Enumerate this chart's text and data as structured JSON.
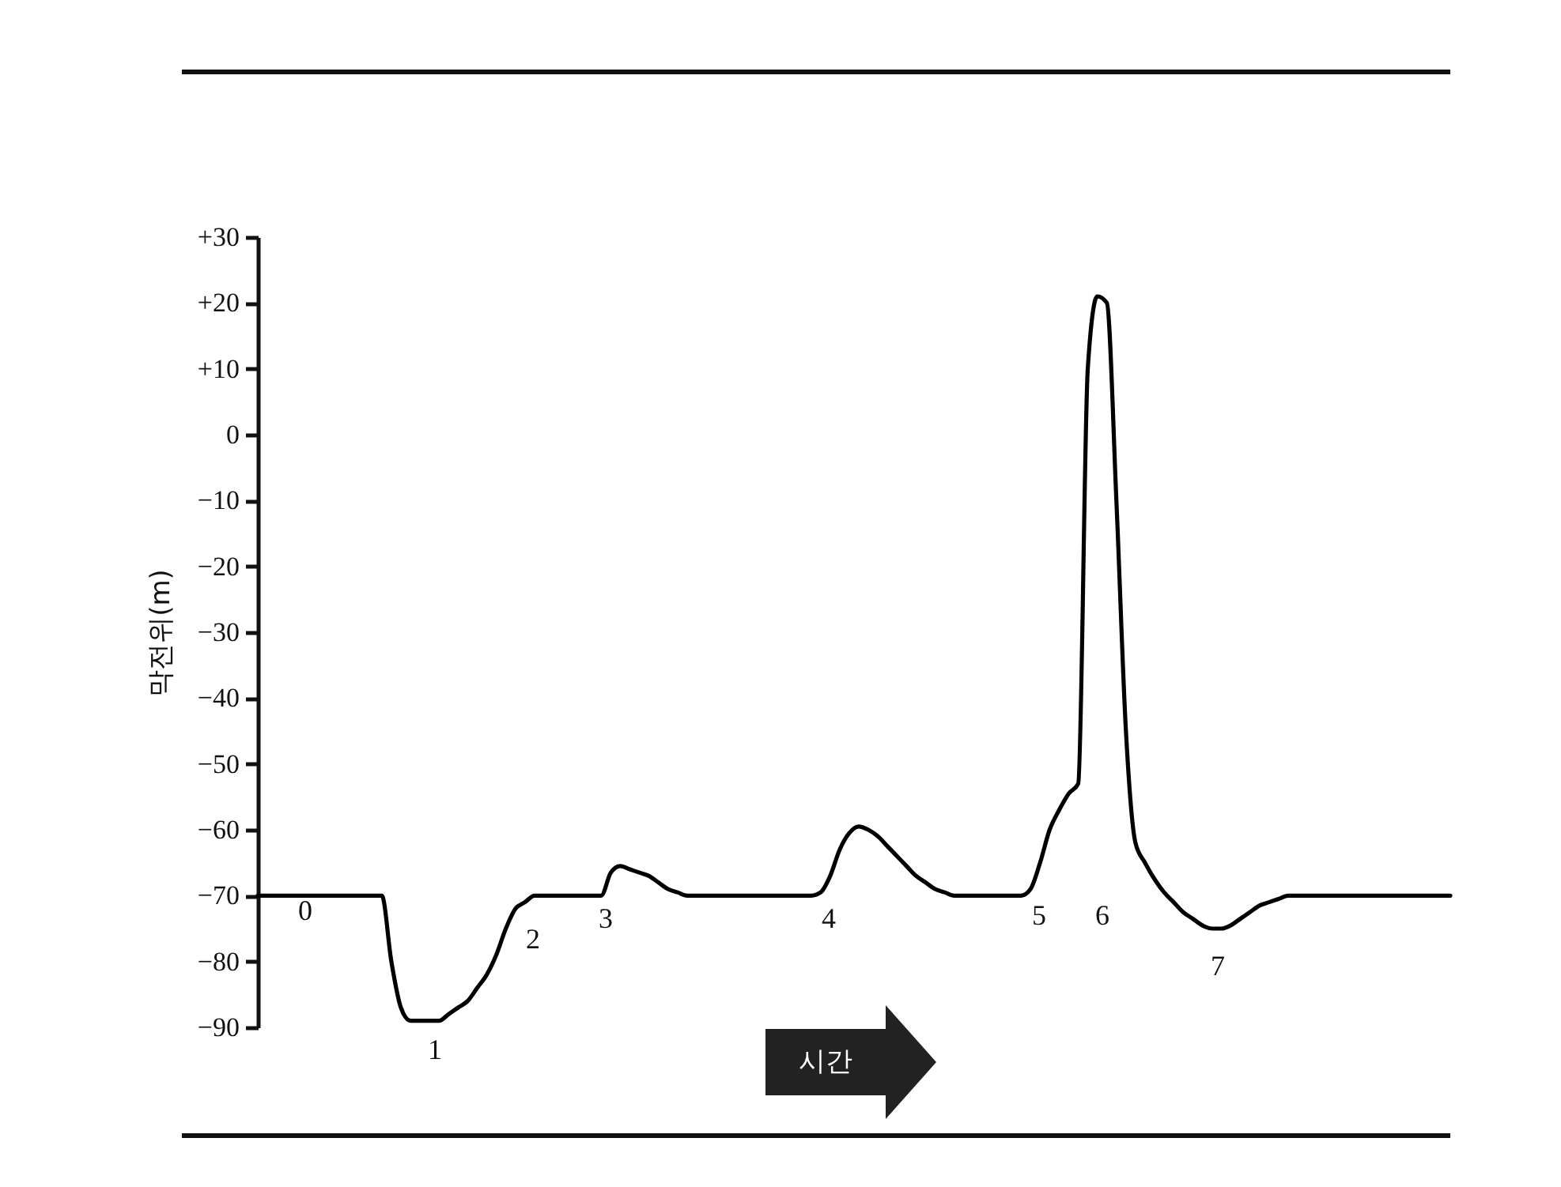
{
  "chart_data": {
    "type": "line",
    "xlabel": "시간",
    "ylabel": "막전위(m)",
    "tick_labels": "y",
    "ylim": [
      -90,
      30
    ],
    "yticks": [
      {
        "value": 30,
        "label": "+30"
      },
      {
        "value": 20,
        "label": "+20"
      },
      {
        "value": 10,
        "label": "+10"
      },
      0,
      {
        "value": -10,
        "label": "−10"
      },
      {
        "value": -20,
        "label": "−20"
      },
      {
        "value": -30,
        "label": "−30"
      },
      {
        "value": -40,
        "label": "−40"
      },
      {
        "value": -50,
        "label": "−50"
      },
      {
        "value": -60,
        "label": "−60"
      },
      {
        "value": -70,
        "label": "−70"
      },
      {
        "value": -80,
        "label": "−80"
      },
      {
        "value": -90,
        "label": "−90"
      }
    ],
    "categories": [
      null,
      null,
      null,
      null,
      null,
      null,
      null,
      null,
      null,
      null,
      null,
      null,
      null,
      null,
      null,
      null,
      null,
      null,
      null,
      null,
      null,
      null,
      null,
      null,
      null,
      null,
      null,
      null,
      null,
      null,
      null,
      null,
      null,
      null,
      null,
      null,
      null,
      null,
      null,
      null,
      null,
      null,
      null,
      null,
      null,
      null,
      null,
      null,
      null,
      null,
      null,
      null,
      null,
      null,
      null,
      null,
      null,
      null,
      null,
      null,
      null,
      null,
      null,
      null,
      null,
      null,
      null,
      null,
      null,
      null,
      null,
      null,
      null,
      null,
      null,
      null,
      null,
      null,
      null,
      null,
      null,
      null,
      null,
      null,
      null,
      null,
      null,
      null,
      null,
      null,
      null,
      null,
      null,
      null,
      null,
      null,
      null,
      null,
      null,
      null,
      null,
      null,
      null,
      null,
      null,
      null,
      null,
      null,
      null,
      null,
      null,
      null,
      null,
      null,
      null,
      null,
      null,
      null,
      null,
      null,
      null,
      null,
      null,
      null,
      null,
      null
    ],
    "series": [
      {
        "color": "#000000",
        "values": [
          -70,
          -70,
          -70,
          -70,
          -70,
          -70,
          -70,
          -70,
          -70,
          -70,
          -70,
          -70,
          -70,
          -70,
          -80,
          -87,
          -89,
          -89,
          -89,
          -89,
          -88,
          -87,
          -86,
          -84,
          -82,
          -79,
          -75,
          -72,
          -71,
          -70,
          -70,
          -70,
          -70,
          -70,
          -70,
          -70,
          -70,
          -66.5,
          -65.5,
          -66,
          -66.5,
          -67,
          -68,
          -69,
          -69.5,
          -70,
          -70,
          -70,
          -70,
          -70,
          -70,
          -70,
          -70,
          -70,
          -70,
          -70,
          -70,
          -70,
          -70,
          -69.5,
          -67,
          -63,
          -60.5,
          -59.5,
          -60,
          -61,
          -62.5,
          -64,
          -65.5,
          -67,
          -68,
          -69,
          -69.5,
          -70,
          -70,
          -70,
          -70,
          -70,
          -70,
          -70,
          -70,
          -69,
          -65,
          -60,
          -57,
          -54.5,
          -53,
          10,
          21,
          20,
          -10,
          -45,
          -62,
          -65,
          -67.5,
          -69.5,
          -71,
          -72.5,
          -73.5,
          -74.5,
          -75,
          -75,
          -74.5,
          -73.5,
          -72.5,
          -71.5,
          -71,
          -70.5,
          -70,
          -70,
          -70,
          -70,
          -70,
          -70,
          -70,
          -70,
          -70,
          -70,
          -70,
          -70,
          -70,
          -70,
          -70,
          -70,
          -70,
          -70
        ]
      }
    ],
    "annotations": [
      "0",
      "1",
      "2",
      "3",
      "4",
      "5",
      "6",
      "7"
    ]
  }
}
